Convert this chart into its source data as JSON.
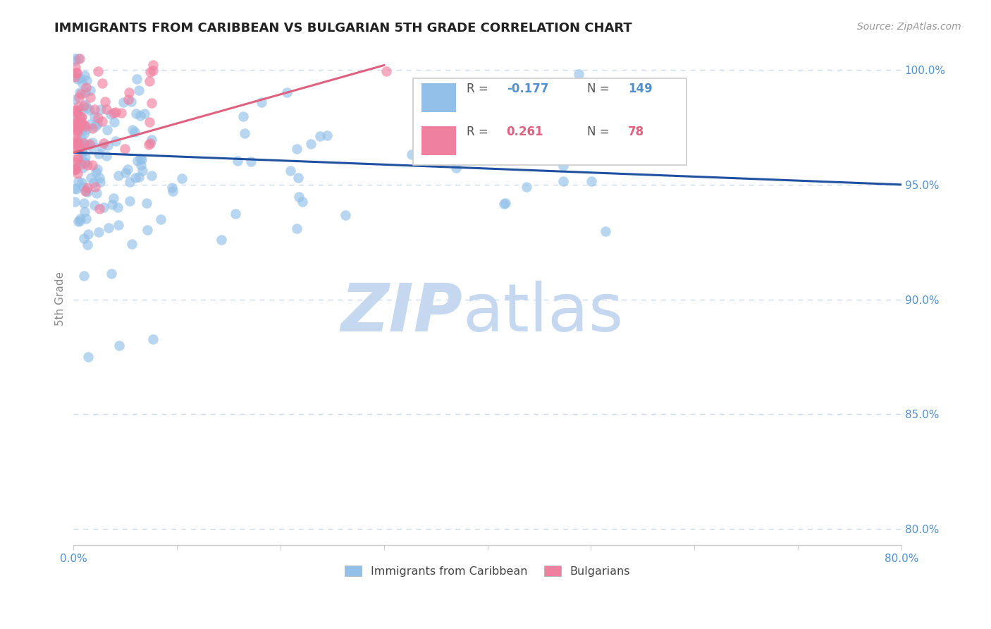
{
  "title": "IMMIGRANTS FROM CARIBBEAN VS BULGARIAN 5TH GRADE CORRELATION CHART",
  "source_text": "Source: ZipAtlas.com",
  "ylabel": "5th Grade",
  "x_min": 0.0,
  "x_max": 0.8,
  "y_min": 0.793,
  "y_max": 1.008,
  "y_ticks": [
    0.8,
    0.85,
    0.9,
    0.95,
    1.0
  ],
  "y_tick_labels": [
    "80.0%",
    "85.0%",
    "90.0%",
    "95.0%",
    "100.0%"
  ],
  "x_tick_positions": [
    0.0,
    0.1,
    0.2,
    0.3,
    0.4,
    0.5,
    0.6,
    0.7,
    0.8
  ],
  "x_tick_labels": [
    "0.0%",
    "",
    "",
    "",
    "",
    "",
    "",
    "",
    "80.0%"
  ],
  "r_caribbean": -0.177,
  "n_caribbean": 149,
  "r_bulgarian": 0.261,
  "n_bulgarian": 78,
  "color_caribbean": "#92C0E8",
  "color_bulgarian": "#F080A0",
  "color_line_caribbean": "#2050A0",
  "color_line_bulgarian": "#E06080",
  "watermark_zip_color": "#C5D8EF",
  "watermark_atlas_color": "#C5D8EF",
  "background_color": "#FFFFFF",
  "grid_color": "#C8D8EC",
  "axis_color": "#CCCCCC",
  "tick_label_color": "#5090D0",
  "ylabel_color": "#888888",
  "title_color": "#222222",
  "source_color": "#999999",
  "legend_border_color": "#CCCCCC",
  "legend_text_color": "#555555",
  "carib_line_x0": 0.0,
  "carib_line_x1": 0.8,
  "carib_line_y0": 0.964,
  "carib_line_y1": 0.95,
  "bulg_line_x0": 0.0,
  "bulg_line_x1": 0.3,
  "bulg_line_y0": 0.964,
  "bulg_line_y1": 1.002
}
